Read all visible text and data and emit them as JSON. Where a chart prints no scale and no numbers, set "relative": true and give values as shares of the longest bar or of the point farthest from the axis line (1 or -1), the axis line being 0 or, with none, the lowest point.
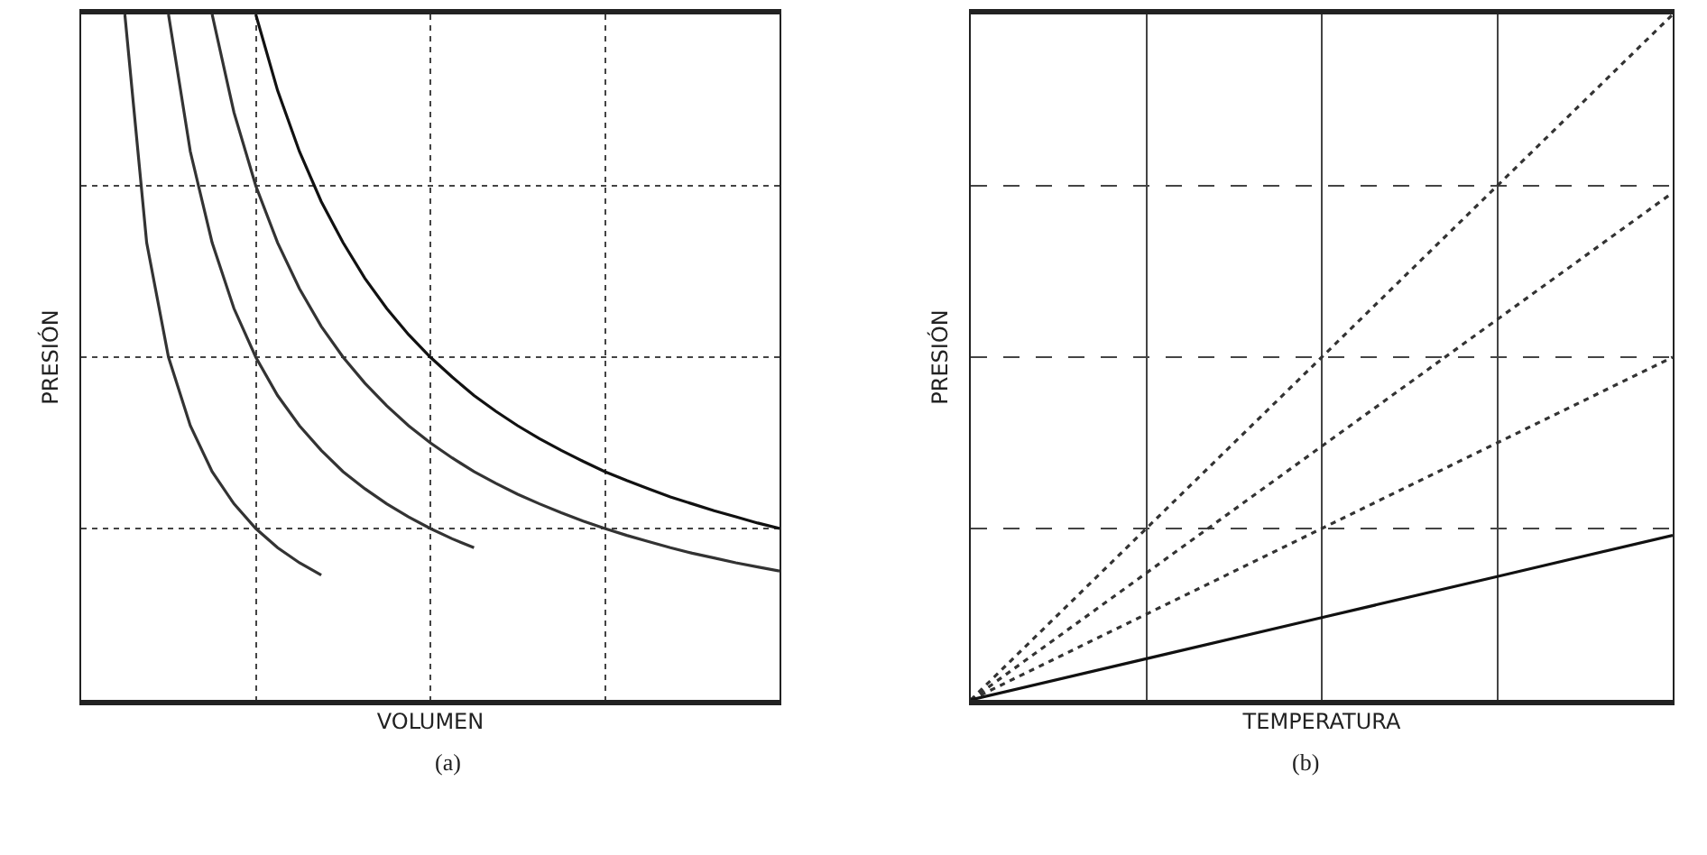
{
  "chart_data": [
    {
      "type": "line",
      "title": "(a)",
      "xlabel": "VOLUMEN",
      "ylabel": "PRESIÓN",
      "relative": true,
      "grid": true,
      "marker": "none",
      "categories": [
        null,
        null,
        null,
        null,
        null,
        null,
        null,
        null,
        null,
        null,
        null,
        null,
        null,
        null,
        null,
        null,
        null,
        null,
        null,
        null,
        null,
        null,
        null,
        null,
        null,
        null,
        null,
        null,
        null,
        null,
        null,
        null,
        null
      ],
      "series": [
        {
          "color": "#333333",
          "line_style": "solid",
          "values": [
            null,
            null,
            1.0,
            0.667,
            0.5,
            0.4,
            0.333,
            0.286,
            0.25,
            0.222,
            0.2,
            0.182,
            null,
            null,
            null,
            null,
            null,
            null,
            null,
            null,
            null,
            null,
            null,
            null,
            null,
            null,
            null,
            null,
            null,
            null,
            null,
            null,
            null
          ]
        },
        {
          "color": "#333333",
          "line_style": "solid",
          "values": [
            null,
            null,
            null,
            null,
            1.0,
            0.8,
            0.667,
            0.571,
            0.5,
            0.444,
            0.4,
            0.364,
            0.333,
            0.308,
            0.286,
            0.267,
            0.25,
            0.235,
            0.222,
            null,
            null,
            null,
            null,
            null,
            null,
            null,
            null,
            null,
            null,
            null,
            null,
            null,
            null
          ]
        },
        {
          "color": "#333333",
          "line_style": "solid",
          "values": [
            null,
            null,
            null,
            null,
            null,
            null,
            1.0,
            0.857,
            0.75,
            0.667,
            0.6,
            0.545,
            0.5,
            0.462,
            0.429,
            0.4,
            0.375,
            0.353,
            0.333,
            0.316,
            0.3,
            0.286,
            0.273,
            0.261,
            0.25,
            0.24,
            0.231,
            0.222,
            0.214,
            0.207,
            0.2,
            0.194,
            0.188
          ]
        },
        {
          "color": "#111111",
          "line_style": "solid",
          "values": [
            null,
            null,
            null,
            null,
            null,
            null,
            null,
            null,
            1.0,
            0.889,
            0.8,
            0.727,
            0.667,
            0.615,
            0.571,
            0.533,
            0.5,
            0.471,
            0.444,
            0.421,
            0.4,
            0.381,
            0.364,
            0.348,
            0.333,
            0.32,
            0.308,
            0.296,
            0.286,
            0.276,
            0.267,
            0.258,
            0.25
          ]
        }
      ]
    },
    {
      "type": "line",
      "title": "(b)",
      "xlabel": "TEMPERATURA",
      "ylabel": "PRESIÓN",
      "relative": true,
      "grid": true,
      "marker": "none",
      "categories": [
        null,
        null,
        null,
        null,
        null
      ],
      "series": [
        {
          "color": "#333333",
          "line_style": "dotted",
          "values": [
            0,
            0.25,
            0.5,
            0.75,
            1.0
          ]
        },
        {
          "color": "#333333",
          "line_style": "dotted",
          "values": [
            0,
            0.185,
            0.37,
            0.555,
            0.74
          ]
        },
        {
          "color": "#333333",
          "line_style": "dotted",
          "values": [
            0,
            0.125,
            0.25,
            0.375,
            0.5
          ]
        },
        {
          "color": "#111111",
          "line_style": "solid",
          "values": [
            0,
            0.06,
            0.12,
            0.18,
            0.24
          ]
        }
      ]
    }
  ]
}
